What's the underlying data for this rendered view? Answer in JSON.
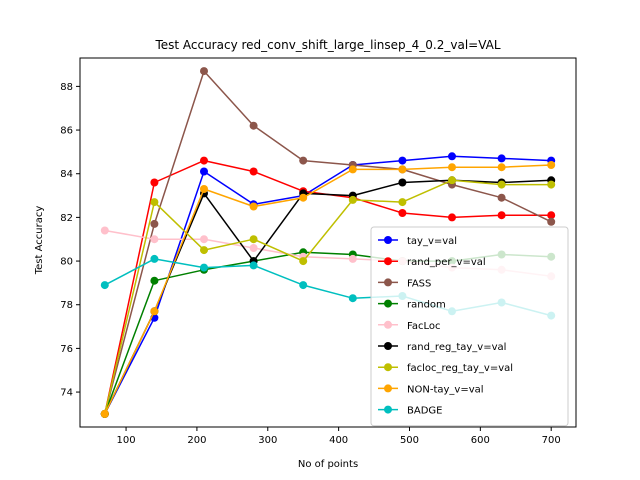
{
  "chart_data": {
    "type": "line",
    "title": "Test Accuracy red_conv_shift_large_linsep_4_0.2_val=VAL",
    "xlabel": "No of points",
    "ylabel": "Test Accuracy",
    "x": [
      70,
      140,
      210,
      280,
      350,
      420,
      490,
      560,
      630,
      700
    ],
    "xlim": [
      35,
      735
    ],
    "ylim": [
      72.4,
      89.3
    ],
    "xticks": [
      100,
      200,
      300,
      400,
      500,
      600,
      700
    ],
    "yticks": [
      74,
      76,
      78,
      80,
      82,
      84,
      86,
      88
    ],
    "grid": false,
    "legend_position": "lower-right",
    "series": [
      {
        "name": "tay_v=val",
        "color": "#0000ff",
        "values": [
          73.0,
          77.4,
          84.1,
          82.6,
          83.0,
          84.4,
          84.6,
          84.8,
          84.7,
          84.6
        ]
      },
      {
        "name": "rand_per_v=val",
        "color": "#ff0000",
        "values": [
          73.0,
          83.6,
          84.6,
          84.1,
          83.2,
          82.9,
          82.2,
          82.0,
          82.1,
          82.1
        ]
      },
      {
        "name": "FASS",
        "color": "#8c564b",
        "values": [
          73.0,
          81.7,
          88.7,
          86.2,
          84.6,
          84.4,
          84.2,
          83.5,
          82.9,
          81.8
        ]
      },
      {
        "name": "random",
        "color": "#008000",
        "values": [
          73.0,
          79.1,
          79.6,
          80.0,
          80.4,
          80.3,
          80.0,
          80.0,
          80.3,
          80.2
        ]
      },
      {
        "name": "FacLoc",
        "color": "#ffc0cb",
        "values": [
          81.4,
          81.0,
          81.0,
          80.6,
          80.2,
          80.1,
          80.0,
          79.7,
          79.6,
          79.3
        ]
      },
      {
        "name": "rand_reg_tay_v=val",
        "color": "#000000",
        "values": [
          73.0,
          77.7,
          83.1,
          80.0,
          83.1,
          83.0,
          83.6,
          83.7,
          83.6,
          83.7
        ]
      },
      {
        "name": "facloc_reg_tay_v=val",
        "color": "#bfbf00",
        "values": [
          73.0,
          82.7,
          80.5,
          81.0,
          80.0,
          82.8,
          82.7,
          83.7,
          83.5,
          83.5
        ]
      },
      {
        "name": "NON-tay_v=val",
        "color": "#ffa500",
        "values": [
          73.0,
          77.7,
          83.3,
          82.5,
          82.9,
          84.2,
          84.2,
          84.3,
          84.3,
          84.4
        ]
      },
      {
        "name": "BADGE",
        "color": "#00bfbf",
        "values": [
          78.9,
          80.1,
          79.7,
          79.8,
          78.9,
          78.3,
          78.4,
          77.7,
          78.1,
          77.5
        ]
      }
    ]
  }
}
